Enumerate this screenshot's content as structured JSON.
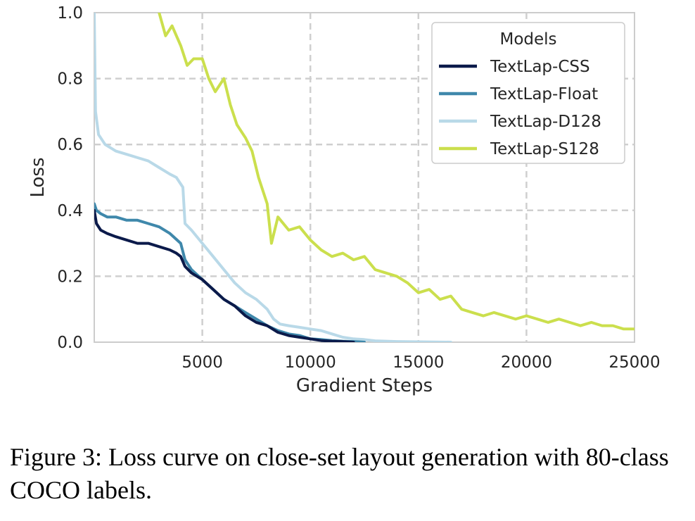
{
  "caption": "Figure 3: Loss curve on close-set layout generation with 80-class COCO labels.",
  "chart_data": {
    "type": "line",
    "title": "",
    "xlabel": "Gradient Steps",
    "ylabel": "Loss",
    "xlim": [
      0,
      25000
    ],
    "ylim": [
      0,
      1.0
    ],
    "xticks": [
      5000,
      10000,
      15000,
      20000,
      25000
    ],
    "xtick_labels": [
      "5000",
      "10000",
      "15000",
      "20000",
      "25000"
    ],
    "yticks": [
      0.0,
      0.2,
      0.4,
      0.6,
      0.8,
      1.0
    ],
    "ytick_labels": [
      "0.0",
      "0.2",
      "0.4",
      "0.6",
      "0.8",
      "1.0"
    ],
    "grid": true,
    "legend": {
      "title": "Models",
      "placement": "top-right"
    },
    "series": [
      {
        "name": "TextLap-CSS",
        "color": "#0b1a4a",
        "points": [
          [
            0,
            0.4
          ],
          [
            100,
            0.36
          ],
          [
            300,
            0.34
          ],
          [
            600,
            0.33
          ],
          [
            1000,
            0.32
          ],
          [
            1500,
            0.31
          ],
          [
            2000,
            0.3
          ],
          [
            2500,
            0.3
          ],
          [
            3000,
            0.29
          ],
          [
            3500,
            0.28
          ],
          [
            3800,
            0.27
          ],
          [
            4000,
            0.26
          ],
          [
            4200,
            0.23
          ],
          [
            4500,
            0.21
          ],
          [
            5000,
            0.19
          ],
          [
            5500,
            0.16
          ],
          [
            6000,
            0.13
          ],
          [
            6500,
            0.11
          ],
          [
            7000,
            0.08
          ],
          [
            7500,
            0.06
          ],
          [
            8000,
            0.05
          ],
          [
            8500,
            0.03
          ],
          [
            9000,
            0.02
          ],
          [
            9500,
            0.015
          ],
          [
            10000,
            0.01
          ],
          [
            10500,
            0.005
          ],
          [
            11000,
            0.003
          ],
          [
            11500,
            0.002
          ],
          [
            12000,
            0.0
          ]
        ]
      },
      {
        "name": "TextLap-Float",
        "color": "#3f88ab",
        "points": [
          [
            0,
            0.42
          ],
          [
            100,
            0.4
          ],
          [
            300,
            0.39
          ],
          [
            600,
            0.38
          ],
          [
            1000,
            0.38
          ],
          [
            1500,
            0.37
          ],
          [
            2000,
            0.37
          ],
          [
            2500,
            0.36
          ],
          [
            3000,
            0.35
          ],
          [
            3500,
            0.33
          ],
          [
            4000,
            0.3
          ],
          [
            4200,
            0.25
          ],
          [
            4500,
            0.22
          ],
          [
            5000,
            0.19
          ],
          [
            5500,
            0.16
          ],
          [
            6000,
            0.13
          ],
          [
            6500,
            0.11
          ],
          [
            7000,
            0.09
          ],
          [
            7500,
            0.07
          ],
          [
            8000,
            0.05
          ],
          [
            8500,
            0.035
          ],
          [
            9000,
            0.025
          ],
          [
            9500,
            0.02
          ],
          [
            10000,
            0.01
          ],
          [
            10500,
            0.008
          ],
          [
            11000,
            0.005
          ],
          [
            11500,
            0.003
          ],
          [
            12000,
            0.002
          ],
          [
            12500,
            0.0
          ]
        ]
      },
      {
        "name": "TextLap-D128",
        "color": "#b9d9e8",
        "points": [
          [
            0,
            1.0
          ],
          [
            60,
            0.7
          ],
          [
            200,
            0.63
          ],
          [
            500,
            0.6
          ],
          [
            1000,
            0.58
          ],
          [
            1500,
            0.57
          ],
          [
            2000,
            0.56
          ],
          [
            2500,
            0.55
          ],
          [
            3000,
            0.53
          ],
          [
            3500,
            0.51
          ],
          [
            3800,
            0.5
          ],
          [
            4100,
            0.47
          ],
          [
            4200,
            0.36
          ],
          [
            4500,
            0.34
          ],
          [
            5000,
            0.3
          ],
          [
            5500,
            0.26
          ],
          [
            6000,
            0.22
          ],
          [
            6500,
            0.18
          ],
          [
            7000,
            0.15
          ],
          [
            7500,
            0.13
          ],
          [
            8000,
            0.1
          ],
          [
            8300,
            0.07
          ],
          [
            8600,
            0.055
          ],
          [
            9000,
            0.05
          ],
          [
            9500,
            0.045
          ],
          [
            10000,
            0.04
          ],
          [
            10500,
            0.035
          ],
          [
            11000,
            0.025
          ],
          [
            11500,
            0.015
          ],
          [
            12000,
            0.01
          ],
          [
            12500,
            0.008
          ],
          [
            13000,
            0.004
          ],
          [
            14000,
            0.002
          ],
          [
            15000,
            0.001
          ],
          [
            16500,
            0.0
          ]
        ]
      },
      {
        "name": "TextLap-S128",
        "color": "#cbdf4d",
        "points": [
          [
            3000,
            1.0
          ],
          [
            3300,
            0.93
          ],
          [
            3600,
            0.96
          ],
          [
            4000,
            0.9
          ],
          [
            4300,
            0.84
          ],
          [
            4600,
            0.86
          ],
          [
            5000,
            0.86
          ],
          [
            5300,
            0.8
          ],
          [
            5600,
            0.76
          ],
          [
            6000,
            0.8
          ],
          [
            6300,
            0.72
          ],
          [
            6600,
            0.66
          ],
          [
            7000,
            0.62
          ],
          [
            7300,
            0.58
          ],
          [
            7600,
            0.5
          ],
          [
            8000,
            0.42
          ],
          [
            8200,
            0.3
          ],
          [
            8500,
            0.38
          ],
          [
            9000,
            0.34
          ],
          [
            9500,
            0.35
          ],
          [
            10000,
            0.31
          ],
          [
            10500,
            0.28
          ],
          [
            11000,
            0.26
          ],
          [
            11500,
            0.27
          ],
          [
            12000,
            0.25
          ],
          [
            12500,
            0.26
          ],
          [
            13000,
            0.22
          ],
          [
            13500,
            0.21
          ],
          [
            14000,
            0.2
          ],
          [
            14500,
            0.18
          ],
          [
            15000,
            0.15
          ],
          [
            15500,
            0.16
          ],
          [
            16000,
            0.13
          ],
          [
            16500,
            0.14
          ],
          [
            17000,
            0.1
          ],
          [
            17500,
            0.09
          ],
          [
            18000,
            0.08
          ],
          [
            18500,
            0.09
          ],
          [
            19000,
            0.08
          ],
          [
            19500,
            0.07
          ],
          [
            20000,
            0.08
          ],
          [
            20500,
            0.07
          ],
          [
            21000,
            0.06
          ],
          [
            21500,
            0.07
          ],
          [
            22000,
            0.06
          ],
          [
            22500,
            0.05
          ],
          [
            23000,
            0.06
          ],
          [
            23500,
            0.05
          ],
          [
            24000,
            0.05
          ],
          [
            24500,
            0.04
          ],
          [
            25000,
            0.04
          ]
        ]
      }
    ]
  }
}
